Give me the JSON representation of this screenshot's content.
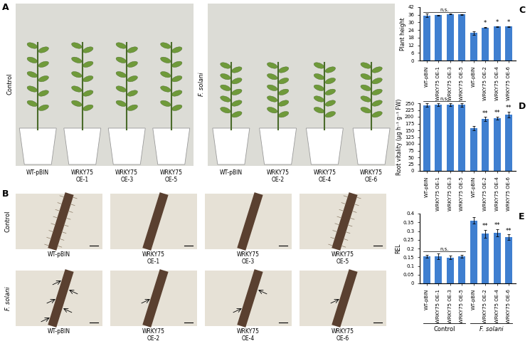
{
  "panels": {
    "A": {
      "label": "A",
      "conditions": [
        {
          "name": "Control",
          "plants": [
            "WT-pBIN",
            "WRKY75\nOE-1",
            "WRKY75\nOE-3",
            "WRKY75\nOE-5"
          ]
        },
        {
          "name": "F. solani",
          "plants": [
            "WT-pBIN",
            "WRKY75\nOE-2",
            "WRKY75\nOE-4",
            "WRKY75\nOE-6"
          ]
        }
      ]
    },
    "B": {
      "label": "B",
      "rows": [
        {
          "name": "Control",
          "plants": [
            "WT-pBIN",
            "WRKY75\nOE-1",
            "WRKY75\nOE-3",
            "WRKY75\nOE-5"
          ]
        },
        {
          "name": "F. solani",
          "plants": [
            "WT-pBIN",
            "WRKY75\nOE-2",
            "WRKY75\nOE-4",
            "WRKY75\nOE-6"
          ]
        }
      ]
    }
  },
  "chart_data": [
    {
      "type": "bar",
      "title": "C",
      "ylabel": "Plant height",
      "categories": [
        "WT-pBIN",
        "WRKY75 OE-1",
        "WRKY75 OE-3",
        "WRKY75 OE-5",
        "WT-pBIN",
        "WRKY75 OE-2",
        "WRKY75 OE-4",
        "WRKY75 OE-6"
      ],
      "values": [
        35.5,
        35.6,
        36.6,
        36.3,
        21.6,
        25.9,
        26.8,
        26.8
      ],
      "errors": [
        1.2,
        0.3,
        0.4,
        0.3,
        1.3,
        0.4,
        0.3,
        0.3
      ],
      "color": "#3f7fd0",
      "ylim": [
        0,
        42
      ],
      "yticks": [
        0,
        6,
        12,
        18,
        24,
        30,
        36,
        42
      ],
      "significance": [
        null,
        null,
        null,
        null,
        null,
        "*",
        "*",
        "*"
      ],
      "annotations": [
        {
          "text": "n.s.",
          "span": [
            0,
            3
          ]
        }
      ]
    },
    {
      "type": "bar",
      "title": "D",
      "ylabel": "Root vitality (μg h⁻¹ g⁻¹ FW)",
      "categories": [
        "WT-pBIN",
        "WRKY75 OE-1",
        "WRKY75 OE-3",
        "WRKY75 OE-5",
        "WT-pBIN",
        "WRKY75 OE-2",
        "WRKY75 OE-4",
        "WRKY75 OE-6"
      ],
      "values": [
        243,
        245,
        244,
        244,
        158,
        192,
        195,
        208
      ],
      "errors": [
        6,
        6,
        5,
        6,
        8,
        7,
        6,
        10
      ],
      "color": "#3f7fd0",
      "ylim": [
        0,
        250
      ],
      "yticks": [
        0,
        25,
        50,
        75,
        100,
        125,
        150,
        175,
        200,
        225,
        250
      ],
      "significance": [
        null,
        null,
        null,
        null,
        null,
        "**",
        "**",
        "**"
      ],
      "annotations": [
        {
          "text": "n.s.",
          "span": [
            0,
            3
          ]
        }
      ]
    },
    {
      "type": "bar",
      "title": "E",
      "ylabel": "REL",
      "categories": [
        "WT-pBIN",
        "WRKY75 OE-1",
        "WRKY75 OE-3",
        "WRKY75 OE-5",
        "WT-pBIN",
        "WRKY75 OE-2",
        "WRKY75 OE-4",
        "WRKY75 OE-6"
      ],
      "values": [
        0.155,
        0.155,
        0.148,
        0.155,
        0.36,
        0.285,
        0.29,
        0.265
      ],
      "errors": [
        0.01,
        0.015,
        0.01,
        0.008,
        0.018,
        0.022,
        0.02,
        0.015
      ],
      "color": "#3f7fd0",
      "ylim": [
        0,
        0.4
      ],
      "yticks": [
        0,
        0.05,
        0.1,
        0.15,
        0.2,
        0.25,
        0.3,
        0.35,
        0.4
      ],
      "significance": [
        null,
        null,
        null,
        null,
        null,
        "**",
        "**",
        "**"
      ],
      "annotations": [
        {
          "text": "n.s.",
          "span": [
            0,
            3
          ]
        }
      ],
      "groups": [
        {
          "label": "Control",
          "span": [
            0,
            3
          ]
        },
        {
          "label": "F. solani",
          "span": [
            4,
            7
          ]
        }
      ]
    }
  ]
}
